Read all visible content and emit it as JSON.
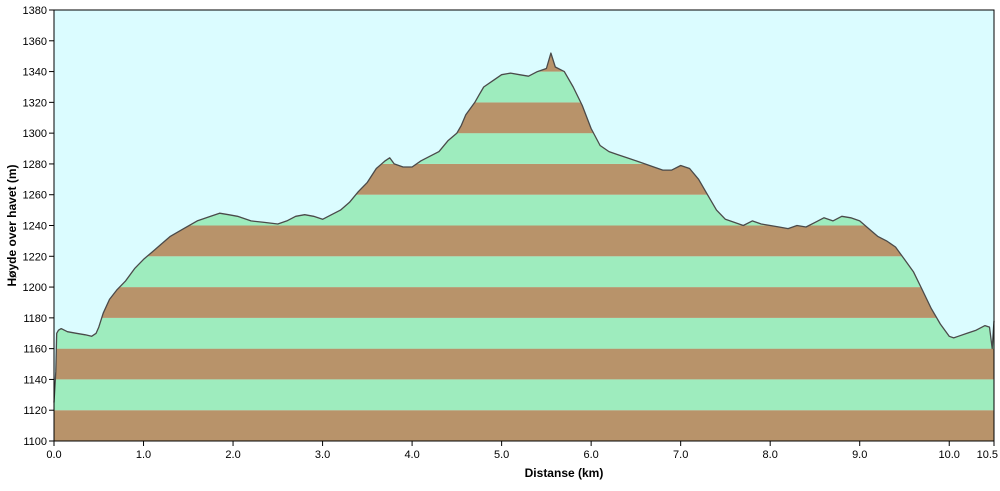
{
  "chart_data": {
    "type": "area",
    "title": "",
    "xlabel": "Distanse  (km)",
    "ylabel": "Høyde over havet (m)",
    "xlim": [
      0,
      10.5
    ],
    "ylim": [
      1100,
      1380
    ],
    "x_ticks": [
      "0.0",
      "1.0",
      "2.0",
      "3.0",
      "4.0",
      "5.0",
      "6.0",
      "7.0",
      "8.0",
      "9.0",
      "10.0",
      "10.5"
    ],
    "x_tick_values": [
      0,
      1,
      2,
      3,
      4,
      5,
      6,
      7,
      8,
      9,
      10,
      10.5
    ],
    "y_ticks": [
      "1100",
      "1120",
      "1140",
      "1160",
      "1180",
      "1200",
      "1220",
      "1240",
      "1260",
      "1280",
      "1300",
      "1320",
      "1340",
      "1360",
      "1380"
    ],
    "y_tick_values": [
      1100,
      1120,
      1140,
      1160,
      1180,
      1200,
      1220,
      1240,
      1260,
      1280,
      1300,
      1320,
      1340,
      1360,
      1380
    ],
    "band_step": 20,
    "grid": false,
    "legend": "none",
    "colors": {
      "background": "#dbfcff",
      "band_light": "#9eecbe",
      "band_dark": "#b8936a",
      "profile_line": "#4a4a4a"
    },
    "series": [
      {
        "x": [
          0.0,
          0.02,
          0.03,
          0.05,
          0.08,
          0.15,
          0.25,
          0.35,
          0.42,
          0.47,
          0.5,
          0.55,
          0.62,
          0.7,
          0.8,
          0.9,
          1.0,
          1.1,
          1.2,
          1.3,
          1.45,
          1.6,
          1.75,
          1.85,
          1.95,
          2.05,
          2.2,
          2.35,
          2.5,
          2.6,
          2.7,
          2.8,
          2.9,
          3.0,
          3.1,
          3.2,
          3.3,
          3.4,
          3.5,
          3.6,
          3.7,
          3.75,
          3.8,
          3.9,
          4.0,
          4.1,
          4.2,
          4.3,
          4.4,
          4.5,
          4.55,
          4.6,
          4.7,
          4.75,
          4.8,
          4.9,
          5.0,
          5.1,
          5.2,
          5.3,
          5.4,
          5.5,
          5.55,
          5.6,
          5.7,
          5.8,
          5.9,
          6.0,
          6.1,
          6.2,
          6.3,
          6.4,
          6.5,
          6.6,
          6.7,
          6.8,
          6.9,
          7.0,
          7.1,
          7.2,
          7.3,
          7.4,
          7.5,
          7.6,
          7.7,
          7.8,
          7.9,
          8.0,
          8.1,
          8.2,
          8.3,
          8.4,
          8.5,
          8.6,
          8.7,
          8.8,
          8.9,
          9.0,
          9.1,
          9.2,
          9.3,
          9.4,
          9.5,
          9.6,
          9.7,
          9.8,
          9.9,
          10.0,
          10.05,
          10.1,
          10.2,
          10.3,
          10.4,
          10.45,
          10.48,
          10.5
        ],
        "y": [
          1125,
          1145,
          1170,
          1172,
          1173,
          1171,
          1170,
          1169,
          1168,
          1170,
          1174,
          1183,
          1192,
          1198,
          1204,
          1212,
          1218,
          1223,
          1228,
          1233,
          1238,
          1243,
          1246,
          1248,
          1247,
          1246,
          1243,
          1242,
          1241,
          1243,
          1246,
          1247,
          1246,
          1244,
          1247,
          1250,
          1255,
          1262,
          1268,
          1277,
          1282,
          1284,
          1280,
          1278,
          1278,
          1282,
          1285,
          1288,
          1295,
          1300,
          1305,
          1312,
          1320,
          1325,
          1330,
          1334,
          1338,
          1339,
          1338,
          1337,
          1340,
          1342,
          1352,
          1343,
          1340,
          1330,
          1318,
          1303,
          1292,
          1288,
          1286,
          1284,
          1282,
          1280,
          1278,
          1276,
          1276,
          1279,
          1277,
          1270,
          1260,
          1250,
          1244,
          1242,
          1240,
          1243,
          1241,
          1240,
          1239,
          1238,
          1240,
          1239,
          1242,
          1245,
          1243,
          1246,
          1245,
          1243,
          1238,
          1233,
          1230,
          1226,
          1218,
          1210,
          1198,
          1186,
          1176,
          1168,
          1167,
          1168,
          1170,
          1172,
          1175,
          1174,
          1160,
          1178
        ]
      }
    ]
  }
}
